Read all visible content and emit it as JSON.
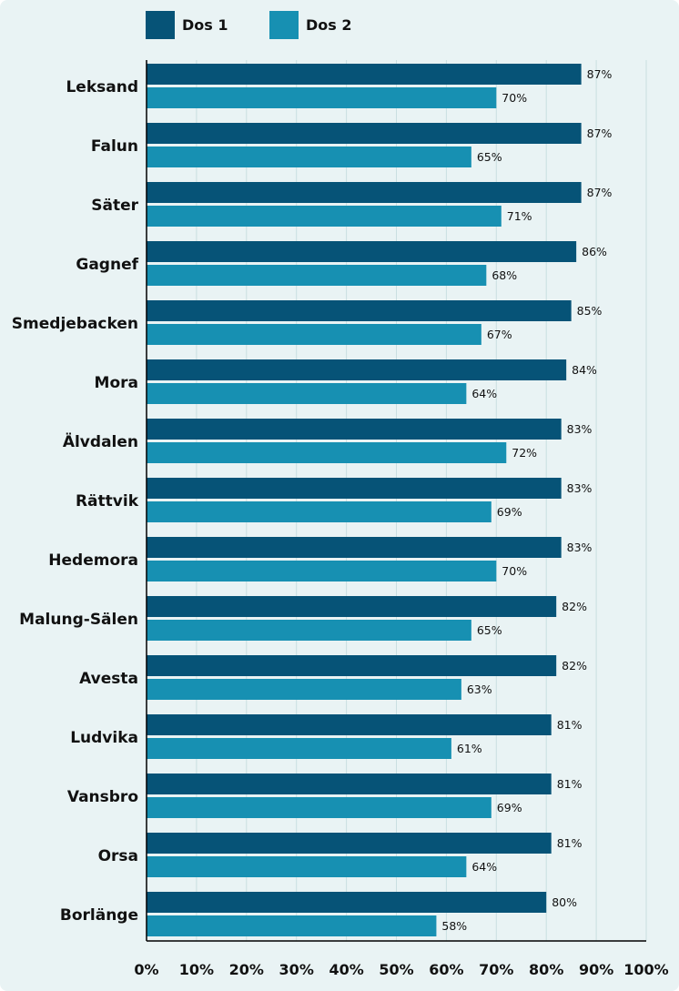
{
  "colors": {
    "background": "#e9f3f4",
    "dos1": "#065377",
    "dos2": "#1790b2",
    "grid": "#c9dfe1",
    "text": "#111111"
  },
  "chart_data": {
    "type": "bar",
    "orientation": "horizontal",
    "categories": [
      "Leksand",
      "Falun",
      "Säter",
      "Gagnef",
      "Smedjebacken",
      "Mora",
      "Älvdalen",
      "Rättvik",
      "Hedemora",
      "Malung-Sälen",
      "Avesta",
      "Ludvika",
      "Vansbro",
      "Orsa",
      "Borlänge"
    ],
    "series": [
      {
        "name": "Dos 1",
        "color": "#065377",
        "values": [
          87,
          87,
          87,
          86,
          85,
          84,
          83,
          83,
          83,
          82,
          82,
          81,
          81,
          81,
          80
        ]
      },
      {
        "name": "Dos 2",
        "color": "#1790b2",
        "values": [
          70,
          65,
          71,
          68,
          67,
          64,
          72,
          69,
          70,
          65,
          63,
          61,
          69,
          64,
          58
        ]
      }
    ],
    "value_labels": {
      "Dos 1": [
        "87%",
        "87%",
        "87%",
        "86%",
        "85%",
        "84%",
        "83%",
        "83%",
        "83%",
        "82%",
        "82%",
        "81%",
        "81%",
        "81%",
        "80%"
      ],
      "Dos 2": [
        "70%",
        "65%",
        "71%",
        "68%",
        "67%",
        "64%",
        "72%",
        "69%",
        "70%",
        "65%",
        "63%",
        "61%",
        "69%",
        "64%",
        "58%"
      ]
    },
    "x_ticks": [
      "0%",
      "10%",
      "20%",
      "30%",
      "40%",
      "50%",
      "60%",
      "70%",
      "80%",
      "90%",
      "100%"
    ],
    "xlim": [
      0,
      100
    ],
    "grid": true,
    "legend": {
      "position": "top-left",
      "entries": [
        "Dos 1",
        "Dos 2"
      ]
    }
  }
}
